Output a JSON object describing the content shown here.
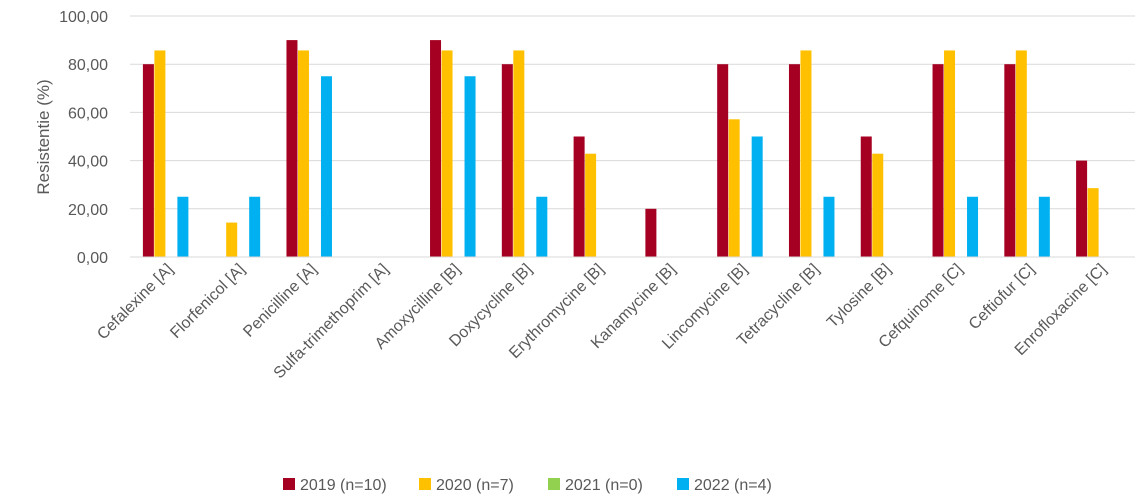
{
  "chart_data": {
    "type": "bar",
    "title": "",
    "xlabel": "",
    "ylabel": "Resistentie (%)",
    "ylim": [
      0,
      100
    ],
    "yticks": [
      "0,00",
      "20,00",
      "40,00",
      "60,00",
      "80,00",
      "100,00"
    ],
    "grid": true,
    "legend_position": "bottom",
    "categories": [
      "Cefalexine [A]",
      "Florfenicol [A]",
      "Penicilline [A]",
      "Sulfa-trimethoprim [A]",
      "Amoxycilline  [B]",
      "Doxycycline [B]",
      "Erythromycine [B]",
      "Kanamycine [B]",
      "Lincomycine [B]",
      "Tetracycline [B]",
      "Tylosine [B]",
      "Cefquinome [C]",
      "Ceftiofur [C]",
      "Enrofloxacine [C]"
    ],
    "series": [
      {
        "name": "2019 (n=10)",
        "color": "#A50021",
        "values": [
          80,
          0,
          90,
          0,
          90,
          80,
          50,
          20,
          80,
          80,
          50,
          80,
          80,
          40
        ]
      },
      {
        "name": "2020 (n=7)",
        "color": "#FFC000",
        "values": [
          85.71,
          14.29,
          85.71,
          0,
          85.71,
          85.71,
          42.86,
          0,
          57.14,
          85.71,
          42.86,
          85.71,
          85.71,
          28.57
        ]
      },
      {
        "name": "2021 (n=0)",
        "color": "#92D050",
        "values": [
          0,
          0,
          0,
          0,
          0,
          0,
          0,
          0,
          0,
          0,
          0,
          0,
          0,
          0
        ]
      },
      {
        "name": "2022 (n=4)",
        "color": "#00B0F0",
        "values": [
          25,
          25,
          75,
          0,
          75,
          25,
          0,
          0,
          50,
          25,
          0,
          25,
          25,
          0
        ]
      }
    ]
  }
}
